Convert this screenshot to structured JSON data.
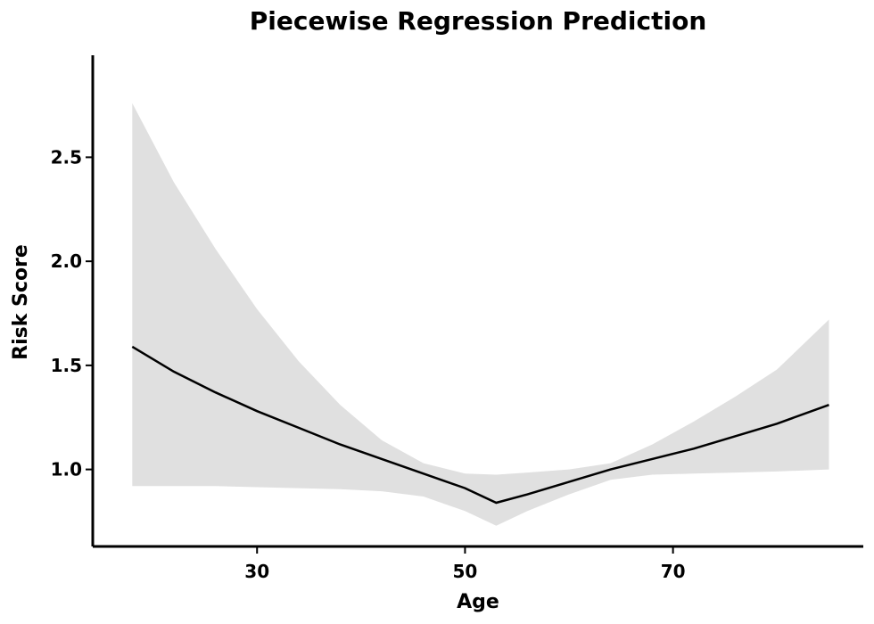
{
  "chart_data": {
    "type": "line",
    "title": "Piecewise Regression Prediction",
    "xlabel": "Age",
    "ylabel": "Risk Score",
    "xlim": [
      14.2,
      88.3
    ],
    "ylim": [
      0.63,
      2.99
    ],
    "xticks": [
      30,
      50,
      70
    ],
    "yticks": [
      1.0,
      1.5,
      2.0,
      2.5
    ],
    "xtick_labels": [
      "30",
      "50",
      "70"
    ],
    "ytick_labels": [
      "1.0",
      "1.5",
      "2.0",
      "2.5"
    ],
    "grid": false,
    "colors": {
      "line": "#000000",
      "band": "#e0e0e0"
    },
    "series": [
      {
        "x": [
          18,
          22,
          26,
          30,
          34,
          38,
          42,
          46,
          50,
          53,
          56,
          60,
          64,
          68,
          72,
          76,
          80,
          85
        ],
        "y": [
          1.59,
          1.47,
          1.37,
          1.28,
          1.2,
          1.12,
          1.05,
          0.98,
          0.91,
          0.84,
          0.88,
          0.94,
          1.0,
          1.05,
          1.1,
          1.16,
          1.22,
          1.31
        ],
        "lower": [
          0.92,
          0.92,
          0.92,
          0.915,
          0.91,
          0.905,
          0.895,
          0.87,
          0.8,
          0.73,
          0.8,
          0.88,
          0.95,
          0.975,
          0.98,
          0.985,
          0.99,
          1.0
        ],
        "upper": [
          2.76,
          2.38,
          2.06,
          1.77,
          1.52,
          1.31,
          1.14,
          1.03,
          0.98,
          0.975,
          0.985,
          1.0,
          1.03,
          1.12,
          1.23,
          1.35,
          1.48,
          1.72
        ]
      }
    ]
  }
}
